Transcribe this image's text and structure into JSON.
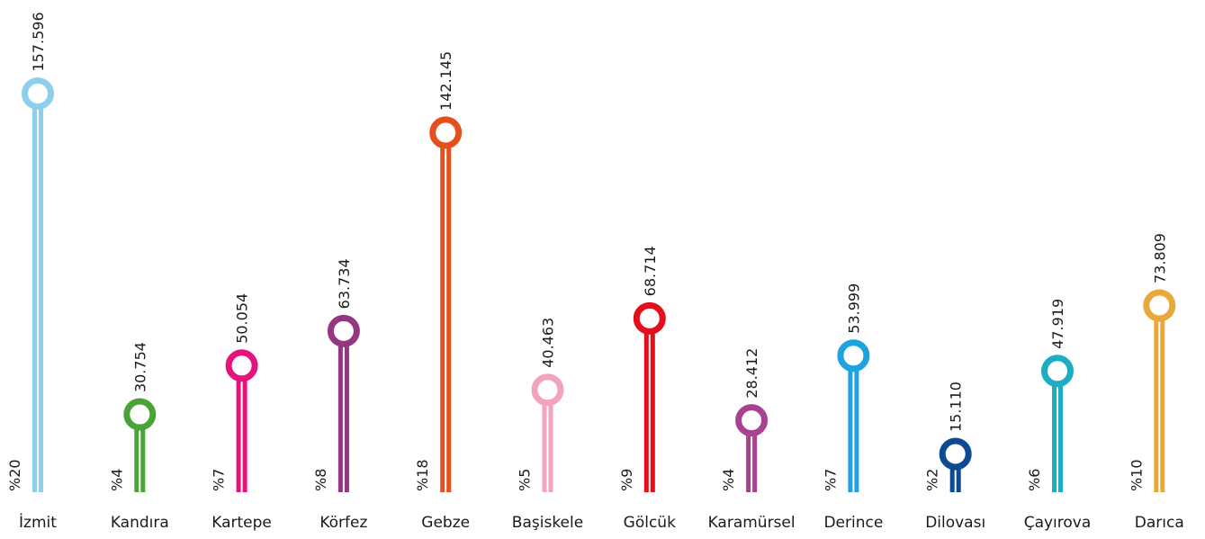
{
  "chart_data": {
    "type": "bar",
    "title": "",
    "xlabel": "",
    "ylabel": "",
    "ylim": [
      0,
      160000
    ],
    "grid": false,
    "legend": "none",
    "categories": [
      "İzmit",
      "Kandıra",
      "Kartepe",
      "Körfez",
      "Gebze",
      "Başiskele",
      "Gölcük",
      "Karamürsel",
      "Derince",
      "Dilovası",
      "Çayırova",
      "Darıca"
    ],
    "values": [
      157596,
      30754,
      50054,
      63734,
      142145,
      40463,
      68714,
      28412,
      53999,
      15110,
      47919,
      73809
    ],
    "value_labels": [
      "157.596",
      "30.754",
      "50.054",
      "63.734",
      "142.145",
      "40.463",
      "68.714",
      "28.412",
      "53.999",
      "15.110",
      "47.919",
      "73.809"
    ],
    "percent_labels": [
      "%20",
      "%4",
      "%7",
      "%8",
      "%18",
      "%5",
      "%9",
      "%4",
      "%7",
      "%2",
      "%6",
      "%10"
    ],
    "colors": [
      "#8fcfee",
      "#4aa336",
      "#e4137e",
      "#953680",
      "#e4501d",
      "#f2a3bf",
      "#e30f1b",
      "#a8418f",
      "#1ea3de",
      "#0d4a91",
      "#1aadc4",
      "#e9a93a"
    ]
  }
}
